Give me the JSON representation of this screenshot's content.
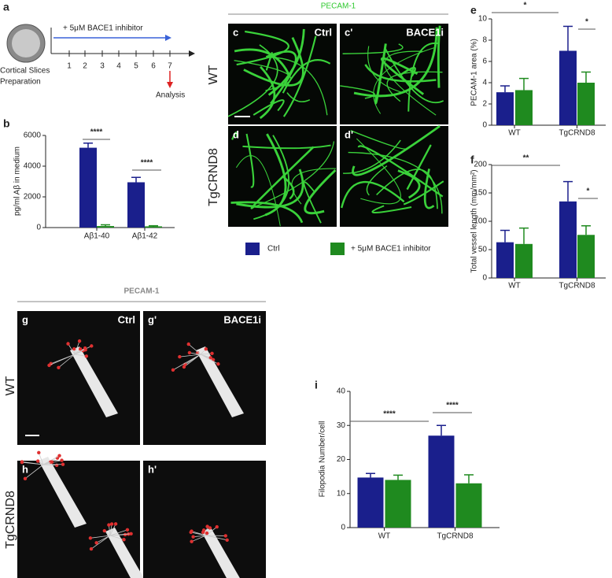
{
  "figure": {
    "panel_a": {
      "label": "a",
      "treatment": "+ 5μM BACE1 inhibitor",
      "days": [
        1,
        2,
        3,
        4,
        5,
        6,
        7
      ],
      "start_line1": "Cortical Slices",
      "start_line2": "Preparation",
      "end": "Analysis"
    },
    "panel_b": {
      "label": "b"
    },
    "panel_e": {
      "label": "e"
    },
    "panel_f": {
      "label": "f"
    },
    "panel_i": {
      "label": "i"
    },
    "vessels": {
      "heading": "PECAM-1",
      "panels": [
        "c",
        "c'",
        "d",
        "d'"
      ],
      "conditions": [
        "Ctrl",
        "BACE1i"
      ],
      "rows": [
        "WT",
        "TgCRND8"
      ]
    },
    "filopodia": {
      "heading": "PECAM-1",
      "panels": [
        "g",
        "g'",
        "h",
        "h'"
      ],
      "conditions": [
        "Ctrl",
        "BACE1i"
      ],
      "rows": [
        "WT",
        "TgCRND8"
      ]
    }
  },
  "chart_data": [
    {
      "type": "bar",
      "ylabel": "pg/ml Aβ in medium",
      "categories": [
        "Aβ1-40",
        "Aβ1-42"
      ],
      "series": [
        {
          "name": "Ctrl",
          "color": "#1a1f8c",
          "values": [
            5200,
            2950
          ],
          "errors": [
            300,
            320
          ]
        },
        {
          "name": "+ 5μM BACE1 inhibitor",
          "color": "#1f8a1f",
          "values": [
            100,
            80
          ],
          "errors": [
            80,
            40
          ]
        }
      ],
      "ylim": [
        0,
        6000
      ],
      "yticks": [
        0,
        2000,
        4000,
        6000
      ],
      "significance": [
        "****",
        "****"
      ]
    },
    {
      "type": "bar",
      "ylabel": "PECAM-1 area (%)",
      "categories": [
        "WT",
        "TgCRND8"
      ],
      "series": [
        {
          "color": "#1a1f8c",
          "values": [
            3.1,
            7.0
          ],
          "errors": [
            0.6,
            2.3
          ]
        },
        {
          "color": "#1f8a1f",
          "values": [
            3.3,
            4.0
          ],
          "errors": [
            1.1,
            1.0
          ]
        }
      ],
      "ylim": [
        0,
        10
      ],
      "yticks": [
        0,
        2,
        4,
        6,
        8,
        10
      ],
      "significance": [
        "*",
        "*"
      ]
    },
    {
      "type": "bar",
      "ylabel": "Total vessel length (mm/mm²)",
      "categories": [
        "WT",
        "TgCRND8"
      ],
      "series": [
        {
          "color": "#1a1f8c",
          "values": [
            63,
            135
          ],
          "errors": [
            21,
            35
          ]
        },
        {
          "color": "#1f8a1f",
          "values": [
            60,
            76
          ],
          "errors": [
            28,
            16
          ]
        }
      ],
      "ylim": [
        0,
        200
      ],
      "yticks": [
        0,
        50,
        100,
        150,
        200
      ],
      "significance": [
        "**",
        "*"
      ]
    },
    {
      "type": "bar",
      "ylabel": "Filopodia Number/cell",
      "categories": [
        "WT",
        "TgCRND8"
      ],
      "series": [
        {
          "color": "#1a1f8c",
          "values": [
            14.7,
            27
          ],
          "errors": [
            1.2,
            3
          ]
        },
        {
          "color": "#1f8a1f",
          "values": [
            14,
            13
          ],
          "errors": [
            1.4,
            2.5
          ]
        }
      ],
      "ylim": [
        0,
        40
      ],
      "yticks": [
        0,
        10,
        20,
        30,
        40
      ],
      "significance": [
        "****",
        "****"
      ]
    }
  ]
}
